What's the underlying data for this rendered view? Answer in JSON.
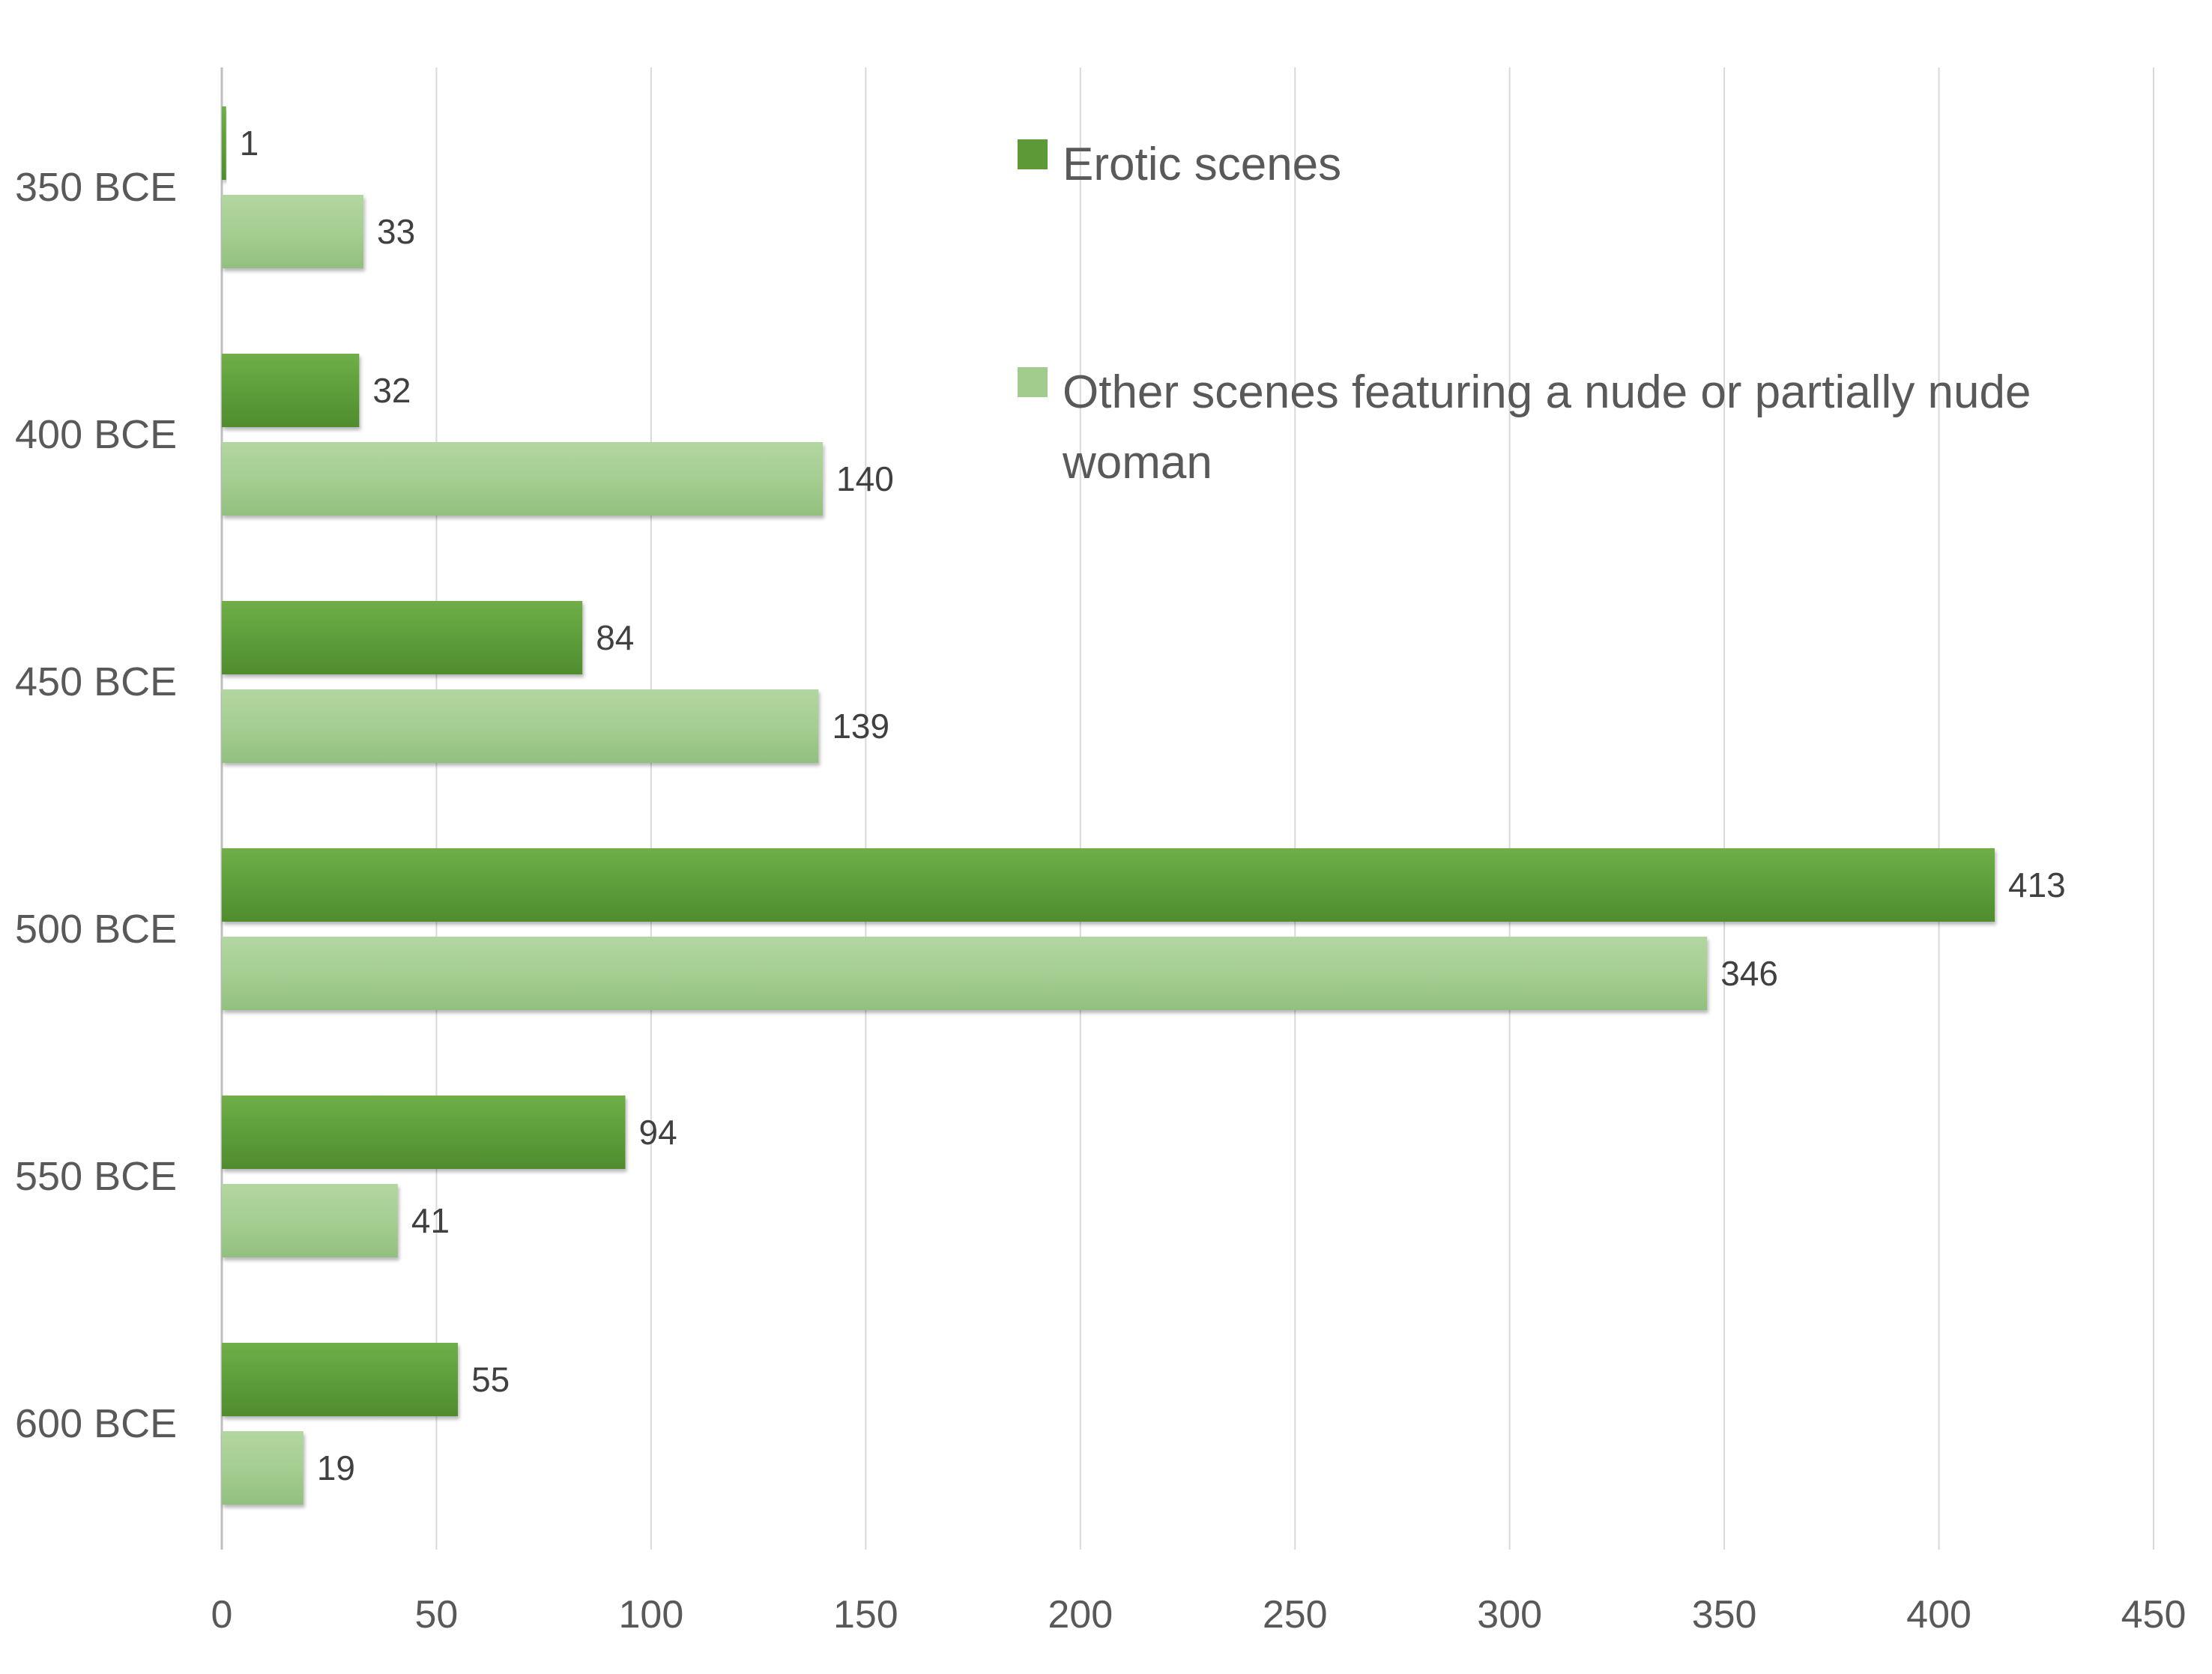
{
  "chart_data": {
    "type": "bar",
    "orientation": "horizontal",
    "title": "",
    "xlabel": "",
    "ylabel": "",
    "categories": [
      "350 BCE",
      "400 BCE",
      "450 BCE",
      "500 BCE",
      "550 BCE",
      "600 BCE"
    ],
    "series": [
      {
        "name": "Erotic scenes",
        "color": "#5b9a37",
        "values": [
          1,
          32,
          84,
          413,
          94,
          55
        ],
        "labels": [
          "1",
          "32",
          "84",
          "413",
          "94",
          "55"
        ]
      },
      {
        "name": "Other scenes featuring a nude or partially nude woman",
        "color": "#a2cc8e",
        "values": [
          33,
          140,
          139,
          346,
          41,
          19
        ],
        "labels": [
          "33",
          "140",
          "139",
          "346",
          "41",
          "19"
        ]
      }
    ],
    "xlim": [
      0,
      450
    ],
    "x_ticks": [
      0,
      50,
      100,
      150,
      200,
      250,
      300,
      350,
      400,
      450
    ],
    "x_tick_labels": [
      "0",
      "50",
      "100",
      "150",
      "200",
      "250",
      "300",
      "350",
      "400",
      "450"
    ],
    "grid": true,
    "legend_position": "top-right",
    "data_labels": true
  }
}
